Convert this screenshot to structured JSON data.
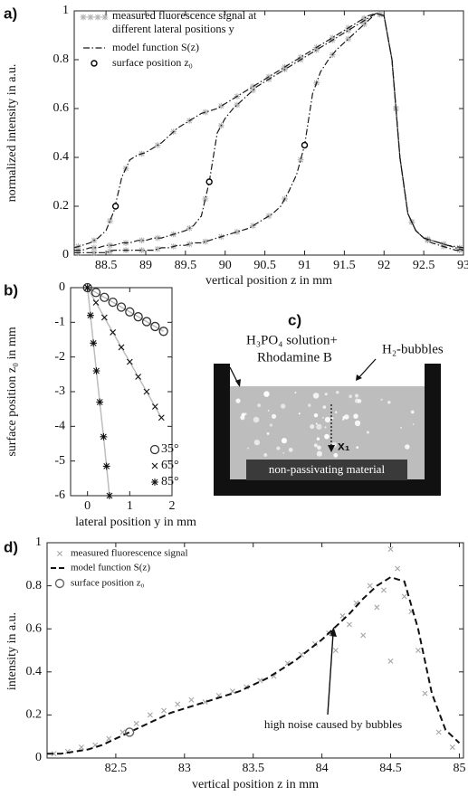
{
  "chart_data": [
    {
      "type": "line",
      "label": "a)",
      "xlabel": "vertical position z in mm",
      "ylabel": "normalized intensity in a.u.",
      "xlim": [
        88.1,
        93
      ],
      "xticks": [
        88.5,
        89,
        89.5,
        90,
        90.5,
        91,
        91.5,
        92,
        92.5,
        93
      ],
      "ylim": [
        0,
        1
      ],
      "yticks": [
        0,
        0.2,
        0.4,
        0.6,
        0.8,
        1
      ],
      "measured": {
        "name": "measured fluorescence signal at different lateral positions y",
        "color": "#b3b3b3",
        "x": [
          88.15,
          88.35,
          88.55,
          88.75,
          88.95,
          89.15,
          89.35,
          89.55,
          89.75,
          89.95,
          90.15,
          90.35,
          90.55,
          90.75,
          90.95,
          91.15,
          91.35,
          91.55,
          91.75,
          91.95,
          92.15,
          92.35,
          92.55,
          92.75,
          92.95
        ],
        "curves": [
          [
            0.035,
            0.06,
            0.14,
            0.355,
            0.415,
            0.45,
            0.505,
            0.55,
            0.585,
            0.61,
            0.65,
            0.69,
            0.73,
            0.77,
            0.81,
            0.85,
            0.89,
            0.93,
            0.97,
            0.985,
            0.6,
            0.135,
            0.065,
            0.045,
            0.03
          ],
          [
            0.02,
            0.03,
            0.04,
            0.05,
            0.06,
            0.07,
            0.085,
            0.11,
            0.23,
            0.53,
            0.615,
            0.675,
            0.72,
            0.76,
            0.8,
            0.84,
            0.88,
            0.92,
            0.96,
            0.985,
            0.6,
            0.135,
            0.065,
            0.045,
            0.025
          ],
          [
            0.01,
            0.01,
            0.015,
            0.02,
            0.02,
            0.025,
            0.035,
            0.045,
            0.055,
            0.075,
            0.095,
            0.12,
            0.16,
            0.23,
            0.39,
            0.705,
            0.82,
            0.885,
            0.945,
            0.985,
            0.6,
            0.135,
            0.06,
            0.035,
            0.02
          ]
        ]
      },
      "model": {
        "name": "model function S(z)",
        "color": "#1a1a1a",
        "x": [
          88.1,
          88.2,
          88.3,
          88.4,
          88.5,
          88.6,
          88.7,
          88.8,
          88.9,
          89,
          89.1,
          89.2,
          89.3,
          89.4,
          89.5,
          89.6,
          89.7,
          89.8,
          89.9,
          90,
          90.1,
          90.2,
          90.3,
          90.4,
          90.5,
          90.6,
          90.7,
          90.8,
          90.9,
          91,
          91.1,
          91.2,
          91.3,
          91.4,
          91.5,
          91.6,
          91.7,
          91.8,
          91.9,
          92,
          92.1,
          92.2,
          92.3,
          92.4,
          92.5,
          92.6,
          92.7,
          92.8,
          92.9,
          93
        ],
        "curves": [
          [
            0.03,
            0.04,
            0.05,
            0.07,
            0.1,
            0.18,
            0.32,
            0.39,
            0.41,
            0.42,
            0.44,
            0.46,
            0.49,
            0.52,
            0.54,
            0.56,
            0.58,
            0.59,
            0.6,
            0.62,
            0.64,
            0.66,
            0.68,
            0.7,
            0.72,
            0.74,
            0.76,
            0.78,
            0.8,
            0.82,
            0.84,
            0.86,
            0.88,
            0.9,
            0.92,
            0.94,
            0.96,
            0.98,
            0.99,
            0.98,
            0.8,
            0.4,
            0.17,
            0.1,
            0.07,
            0.06,
            0.05,
            0.04,
            0.035,
            0.03
          ],
          [
            0.02,
            0.02,
            0.03,
            0.03,
            0.04,
            0.04,
            0.05,
            0.05,
            0.06,
            0.06,
            0.07,
            0.07,
            0.08,
            0.09,
            0.1,
            0.12,
            0.16,
            0.3,
            0.5,
            0.56,
            0.6,
            0.63,
            0.66,
            0.69,
            0.71,
            0.73,
            0.75,
            0.77,
            0.79,
            0.81,
            0.83,
            0.85,
            0.87,
            0.89,
            0.91,
            0.93,
            0.95,
            0.97,
            0.99,
            0.98,
            0.8,
            0.4,
            0.17,
            0.1,
            0.07,
            0.06,
            0.05,
            0.04,
            0.03,
            0.02
          ],
          [
            0.01,
            0.01,
            0.01,
            0.01,
            0.01,
            0.02,
            0.02,
            0.02,
            0.02,
            0.02,
            0.02,
            0.03,
            0.03,
            0.04,
            0.04,
            0.05,
            0.05,
            0.06,
            0.07,
            0.08,
            0.09,
            0.1,
            0.11,
            0.13,
            0.15,
            0.17,
            0.2,
            0.26,
            0.33,
            0.45,
            0.66,
            0.75,
            0.8,
            0.84,
            0.87,
            0.9,
            0.93,
            0.96,
            0.99,
            0.98,
            0.8,
            0.4,
            0.17,
            0.1,
            0.07,
            0.05,
            0.04,
            0.03,
            0.02,
            0.02
          ]
        ]
      },
      "surface": {
        "name": "surface position z₀",
        "color": "#000000",
        "x": [
          88.62,
          89.8,
          91.0
        ],
        "values": [
          0.2,
          0.3,
          0.45
        ]
      }
    },
    {
      "type": "scatter",
      "label": "b)",
      "xlabel": "lateral position y in mm",
      "ylabel": "surface position z₀ in mm",
      "xlim": [
        -0.4,
        2
      ],
      "xticks": [
        0,
        1,
        2
      ],
      "ylim": [
        -6,
        0
      ],
      "yticks": [
        0,
        -1,
        -2,
        -3,
        -4,
        -5,
        -6
      ],
      "fit_color": "#bdbdbd",
      "series": [
        {
          "name": "35°",
          "marker": "o",
          "color": "#333333",
          "x": [
            0,
            0.2,
            0.4,
            0.6,
            0.8,
            1.0,
            1.2,
            1.4,
            1.6,
            1.8
          ],
          "values": [
            0,
            -0.14,
            -0.28,
            -0.42,
            -0.56,
            -0.7,
            -0.84,
            -0.98,
            -1.12,
            -1.26
          ]
        },
        {
          "name": "65°",
          "marker": "x",
          "color": "#111111",
          "x": [
            0,
            0.2,
            0.4,
            0.6,
            0.8,
            1.0,
            1.2,
            1.4,
            1.6,
            1.75
          ],
          "values": [
            0,
            -0.43,
            -0.86,
            -1.29,
            -1.72,
            -2.14,
            -2.57,
            -3.0,
            -3.43,
            -3.75
          ]
        },
        {
          "name": "85°",
          "marker": "*",
          "color": "#111111",
          "x": [
            0,
            0.07,
            0.14,
            0.21,
            0.29,
            0.38,
            0.45,
            0.52
          ],
          "values": [
            0,
            -0.8,
            -1.6,
            -2.4,
            -3.3,
            -4.3,
            -5.15,
            -6
          ]
        }
      ]
    },
    {
      "type": "line",
      "label": "d)",
      "xlabel": "vertical position z in mm",
      "ylabel": "intensity in a.u.",
      "xlim": [
        82,
        85.03
      ],
      "xticks": [
        82.5,
        83,
        83.5,
        84,
        84.5,
        85
      ],
      "ylim": [
        0,
        1
      ],
      "yticks": [
        0,
        0.2,
        0.4,
        0.6,
        0.8,
        1
      ],
      "measured": {
        "name": "measured fluorescence signal",
        "color": "#a6a6a6",
        "x": [
          82.05,
          82.15,
          82.25,
          82.35,
          82.45,
          82.55,
          82.65,
          82.75,
          82.85,
          82.95,
          83.05,
          83.15,
          83.25,
          83.35,
          83.45,
          83.55,
          83.65,
          83.75,
          83.85,
          83.95,
          84.05,
          84.1,
          84.15,
          84.2,
          84.25,
          84.3,
          84.35,
          84.4,
          84.45,
          84.5,
          84.5,
          84.55,
          84.6,
          84.65,
          84.7,
          84.75,
          84.85,
          84.95
        ],
        "values": [
          0.02,
          0.03,
          0.05,
          0.06,
          0.09,
          0.12,
          0.16,
          0.2,
          0.22,
          0.25,
          0.27,
          0.26,
          0.29,
          0.31,
          0.33,
          0.36,
          0.38,
          0.44,
          0.48,
          0.53,
          0.58,
          0.5,
          0.66,
          0.62,
          0.72,
          0.57,
          0.8,
          0.7,
          0.78,
          0.97,
          0.45,
          0.88,
          0.75,
          0.68,
          0.5,
          0.3,
          0.12,
          0.05
        ]
      },
      "model": {
        "name": "model function S(z)",
        "color": "#111111",
        "x": [
          82,
          82.1,
          82.2,
          82.3,
          82.4,
          82.5,
          82.6,
          82.7,
          82.8,
          82.9,
          83,
          83.1,
          83.2,
          83.3,
          83.4,
          83.5,
          83.6,
          83.7,
          83.8,
          83.9,
          84,
          84.1,
          84.2,
          84.3,
          84.4,
          84.5,
          84.6,
          84.7,
          84.8,
          84.9,
          85
        ],
        "values": [
          0.02,
          0.02,
          0.03,
          0.04,
          0.06,
          0.09,
          0.12,
          0.15,
          0.18,
          0.21,
          0.23,
          0.25,
          0.27,
          0.29,
          0.31,
          0.34,
          0.37,
          0.41,
          0.45,
          0.5,
          0.55,
          0.61,
          0.67,
          0.74,
          0.8,
          0.84,
          0.82,
          0.6,
          0.3,
          0.13,
          0.07
        ]
      },
      "surface": {
        "name": "surface position z₀",
        "color": "#666666",
        "x": [
          82.6
        ],
        "values": [
          0.12
        ]
      },
      "annotation": "high noise caused by bubbles"
    }
  ],
  "diagram": {
    "label": "c)",
    "solution": [
      "H₃PO₄ solution+",
      "Rhodamine B"
    ],
    "bubbles": "H₂-bubbles",
    "axis": "x₁",
    "material": "non-passivating material"
  }
}
